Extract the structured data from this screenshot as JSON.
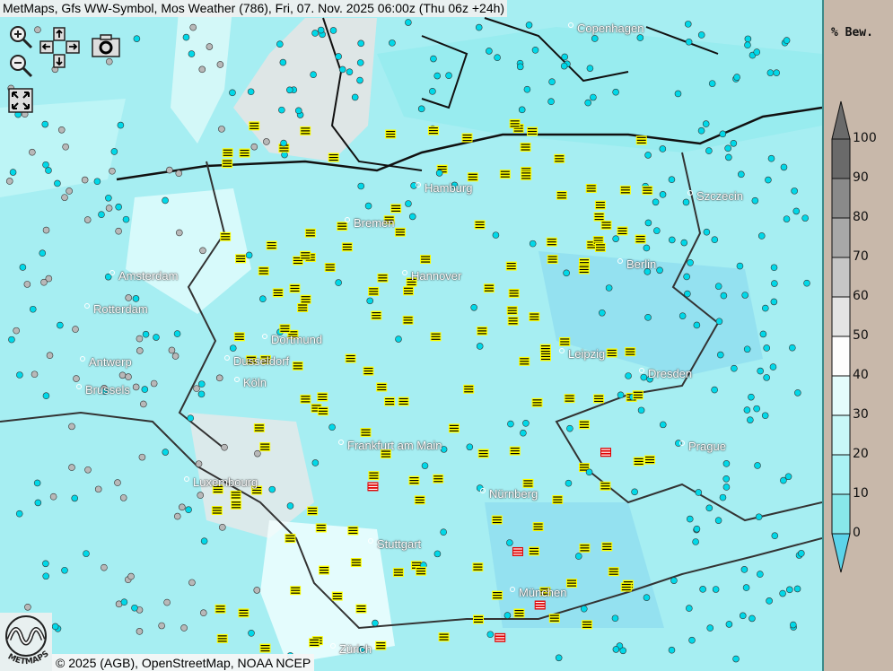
{
  "title": "MetMaps, Gfs WW-Symbol, Mos Weather (786), Fri, 07. Nov. 2025 06:00z (Thu 06z +24h)",
  "controls": {
    "zoom_in": "zoom-in-icon",
    "zoom_out": "zoom-out-icon",
    "pan": "arrow-pad-icon",
    "snapshot": "camera-icon",
    "fullscreen": "fullscreen-icon"
  },
  "cities": [
    {
      "name": "Copenhagen"
    },
    {
      "name": "Hamburg"
    },
    {
      "name": "Szczecin"
    },
    {
      "name": "Bremen"
    },
    {
      "name": "Amsterdam"
    },
    {
      "name": "Hannover"
    },
    {
      "name": "Berlin"
    },
    {
      "name": "Rotterdam"
    },
    {
      "name": "Dortmund"
    },
    {
      "name": "Leipzig"
    },
    {
      "name": "Antwerp"
    },
    {
      "name": "Dusseldorf"
    },
    {
      "name": "Dresden"
    },
    {
      "name": "Brussels"
    },
    {
      "name": "Köln"
    },
    {
      "name": "Frankfurt am Main"
    },
    {
      "name": "Prague"
    },
    {
      "name": "Luxembourg"
    },
    {
      "name": "Nürnberg"
    },
    {
      "name": "Stuttgart"
    },
    {
      "name": "München"
    },
    {
      "name": "Zürich"
    }
  ],
  "footer": "© 2025 (AGB), OpenStreetMap, NOAA NCEP",
  "logo_text": "METMAPS",
  "legend": {
    "title": "% Bew.",
    "ticks": [
      "100",
      "90",
      "80",
      "70",
      "60",
      "50",
      "40",
      "30",
      "20",
      "10",
      "0"
    ],
    "colors": [
      "#6a6a6a",
      "#8a8a8a",
      "#a8a8a8",
      "#c6c6c6",
      "#e4e4e4",
      "#fdfdfd",
      "#e4fcfc",
      "#c8f8f8",
      "#aaf2f4",
      "#88e8ea",
      "#5cd4ea"
    ]
  },
  "symbol_colors": {
    "fog": "#ffff00",
    "freezing_fog": "#e00000",
    "drizzle_cyan": "#00d8e8",
    "cloud_grey": "#b8b8b8"
  }
}
